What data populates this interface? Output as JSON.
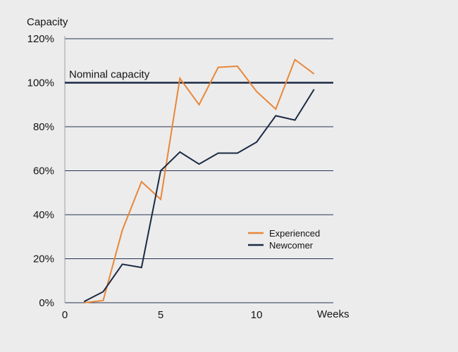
{
  "chart_data": {
    "type": "line",
    "title": "",
    "ylabel": "Capacity",
    "xlabel": "Weeks",
    "ylim": [
      0,
      120
    ],
    "xlim": [
      0,
      14
    ],
    "yticks": [
      0,
      20,
      40,
      60,
      80,
      100,
      120
    ],
    "ytick_labels": [
      "0%",
      "20%",
      "40%",
      "60%",
      "80%",
      "100%",
      "120%"
    ],
    "xticks": [
      0,
      5,
      10
    ],
    "xtick_labels": [
      "0",
      "5",
      "10"
    ],
    "grid": "horizontal",
    "legend_position": "lower-right",
    "reference_line": {
      "y": 100,
      "label": "Nominal capacity",
      "color": "#1a2a44"
    },
    "series": [
      {
        "name": "Experienced",
        "color": "#e8873a",
        "x": [
          1,
          2,
          3,
          4,
          5,
          6,
          7,
          8,
          9,
          10,
          11,
          12,
          13
        ],
        "y": [
          0,
          1,
          33,
          55,
          47,
          102,
          90,
          107,
          107.5,
          96,
          88,
          110.5,
          104
        ]
      },
      {
        "name": "Newcomer",
        "color": "#1a2a44",
        "x": [
          1,
          2,
          3,
          4,
          5,
          6,
          7,
          8,
          9,
          10,
          11,
          12,
          13
        ],
        "y": [
          0.5,
          5,
          17.5,
          16,
          60,
          68.5,
          63,
          68,
          68,
          73,
          85,
          83,
          97
        ]
      }
    ]
  }
}
